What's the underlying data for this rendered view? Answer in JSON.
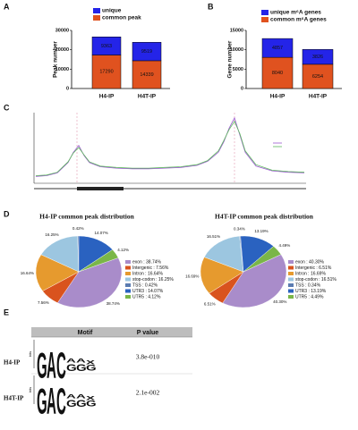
{
  "panel_labels": [
    "A",
    "B",
    "C",
    "D",
    "E"
  ],
  "chart_data": [
    {
      "type": "bar",
      "stacked": true,
      "ylabel": "Peak number",
      "categories": [
        "H4-IP",
        "H4T-IP"
      ],
      "series": [
        {
          "name": "common peak",
          "color": "#e0521f",
          "values": [
            17290,
            14339
          ]
        },
        {
          "name": "unique",
          "color": "#2424e8",
          "values": [
            9363,
            9519
          ]
        }
      ],
      "ylim": [
        0,
        30000
      ],
      "yticks": [
        0,
        10000,
        20000,
        30000
      ]
    },
    {
      "type": "bar",
      "stacked": true,
      "ylabel": "Gene number",
      "categories": [
        "H4-IP",
        "H4T-IP"
      ],
      "series": [
        {
          "name": "common m⁶A genes",
          "color": "#e0521f",
          "values": [
            8040,
            6254
          ]
        },
        {
          "name": "unique m⁶A genes",
          "color": "#2424e8",
          "values": [
            4857,
            3826
          ]
        }
      ],
      "ylim": [
        0,
        15000
      ],
      "yticks": [
        0,
        5000,
        10000,
        15000
      ]
    },
    {
      "type": "line",
      "x": [
        0,
        4,
        8,
        12,
        14,
        16,
        18,
        20,
        24,
        30,
        36,
        42,
        48,
        54,
        60,
        64,
        68,
        70,
        72,
        74,
        76,
        78,
        82,
        88,
        94,
        100
      ],
      "xlim": [
        0,
        100
      ],
      "ylim": [
        0,
        1
      ],
      "series": [
        {
          "color": "#9b59d0",
          "values": [
            0.1,
            0.11,
            0.15,
            0.3,
            0.45,
            0.55,
            0.4,
            0.3,
            0.24,
            0.22,
            0.21,
            0.21,
            0.22,
            0.23,
            0.26,
            0.32,
            0.45,
            0.6,
            0.8,
            0.95,
            0.7,
            0.45,
            0.25,
            0.18,
            0.16,
            0.15
          ]
        },
        {
          "color": "#5cb85c",
          "values": [
            0.11,
            0.12,
            0.16,
            0.31,
            0.44,
            0.52,
            0.41,
            0.31,
            0.25,
            0.23,
            0.22,
            0.22,
            0.23,
            0.24,
            0.27,
            0.33,
            0.47,
            0.62,
            0.78,
            0.9,
            0.72,
            0.47,
            0.27,
            0.19,
            0.17,
            0.16
          ]
        }
      ]
    },
    {
      "type": "pie",
      "title": "H4-IP common peak distribution",
      "values": [
        38.74,
        7.56,
        16.64,
        16.25,
        0.42,
        14.07,
        4.12
      ],
      "value_labels": [
        "38.74%",
        "7.56%",
        "16.64%",
        "16.25%",
        "0.42%",
        "14.07%",
        "4.12%"
      ],
      "labels": [
        "exon : 38.74%",
        "Intergenic : 7.56%",
        "Intron : 16.64%",
        "stop-codon : 16.25%",
        "TSS : 0.42%",
        "UTR3 : 14.07%",
        "UTR5 : 4.12%"
      ],
      "colors": [
        "#a98cca",
        "#d9531e",
        "#e69a2e",
        "#9cc6e0",
        "#5b7bb0",
        "#2a62c0",
        "#7ab648"
      ]
    },
    {
      "type": "pie",
      "title": "H4T-IP common peak distribution",
      "values": [
        40.3,
        6.51,
        16.69,
        16.51,
        0.34,
        13.19,
        4.49
      ],
      "value_labels": [
        "40.30%",
        "6.51%",
        "16.69%",
        "16.51%",
        "0.34%",
        "13.19%",
        "4.49%"
      ],
      "labels": [
        "exon : 40.30%",
        "Intergenic : 6.51%",
        "Intron : 16.69%",
        "stop-codon : 16.51%",
        "TSS : 0.34%",
        "UTR3 : 13.19%",
        "UTR5 : 4.49%"
      ],
      "colors": [
        "#a98cca",
        "#d9531e",
        "#e69a2e",
        "#9cc6e0",
        "#5b7bb0",
        "#2a62c0",
        "#7ab648"
      ]
    }
  ],
  "table": {
    "header": [
      "Motif",
      "P value"
    ],
    "logo_ylabel": "bits",
    "logo_ylim": [
      0,
      2
    ],
    "rows": [
      {
        "name": "H4-IP",
        "p": "3.8e-010",
        "logo": [
          [
            [
              "G",
              1.8
            ]
          ],
          [
            [
              "A",
              1.9
            ]
          ],
          [
            [
              "C",
              1.9
            ]
          ],
          [
            [
              "G",
              0.5
            ],
            [
              "A",
              0.3
            ]
          ],
          [
            [
              "G",
              0.5
            ],
            [
              "A",
              0.3
            ]
          ],
          [
            [
              "G",
              0.4
            ],
            [
              "X",
              0.3
            ]
          ]
        ]
      },
      {
        "name": "H4T-IP",
        "p": "2.1e-002",
        "logo": [
          [
            [
              "G",
              1.8
            ]
          ],
          [
            [
              "A",
              1.9
            ]
          ],
          [
            [
              "C",
              1.9
            ]
          ],
          [
            [
              "G",
              0.5
            ],
            [
              "A",
              0.3
            ]
          ],
          [
            [
              "G",
              0.5
            ],
            [
              "A",
              0.3
            ]
          ],
          [
            [
              "G",
              0.4
            ],
            [
              "X",
              0.3
            ]
          ]
        ]
      }
    ]
  }
}
